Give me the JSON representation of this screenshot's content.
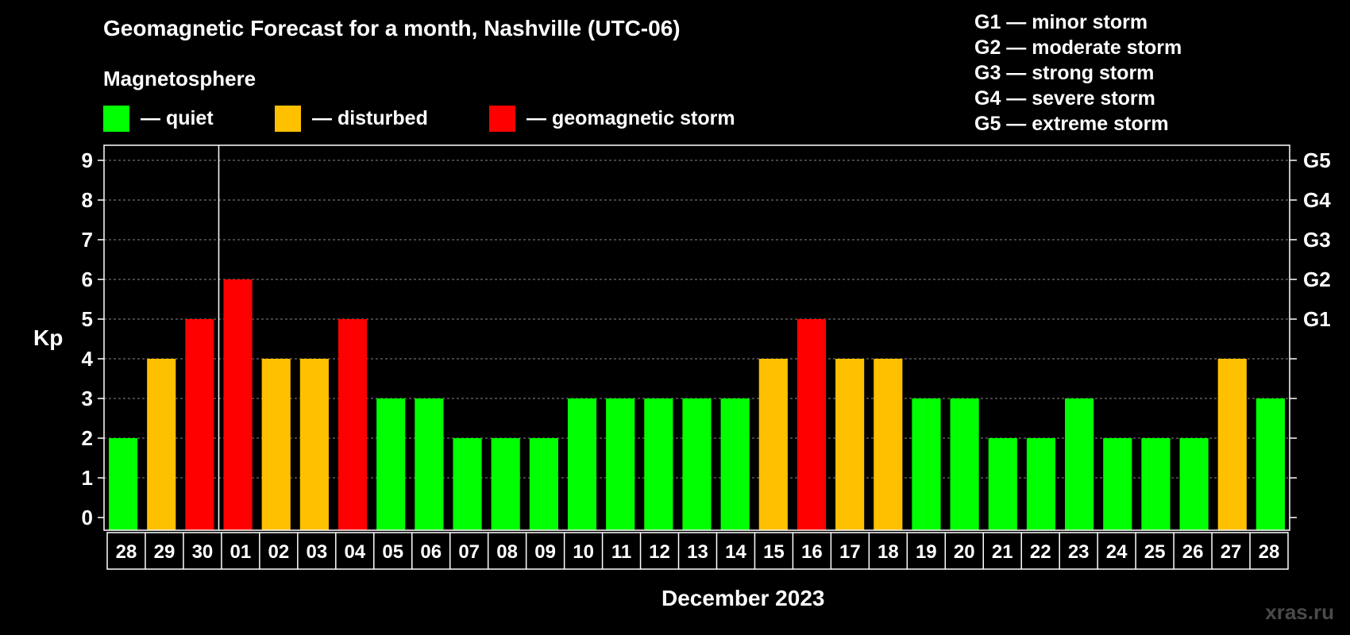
{
  "title": "Geomagnetic Forecast for a month, Nashville (UTC-06)",
  "legend": {
    "heading": "Magnetosphere",
    "items": [
      {
        "label": "— quiet",
        "color": "#00ff00"
      },
      {
        "label": "— disturbed",
        "color": "#ffc000"
      },
      {
        "label": "— geomagnetic storm",
        "color": "#ff0000"
      }
    ]
  },
  "g_scale": [
    "G1 — minor storm",
    "G2 — moderate storm",
    "G3 — strong storm",
    "G4 — severe storm",
    "G5 — extreme storm"
  ],
  "watermark": "xras.ru",
  "chart_data": {
    "type": "bar",
    "title": "Geomagnetic Forecast for a month, Nashville (UTC-06)",
    "xlabel": "December 2023",
    "ylabel": "Kp",
    "ylim": [
      0,
      9
    ],
    "yticks": [
      "0",
      "1",
      "2",
      "3",
      "4",
      "5",
      "6",
      "7",
      "8",
      "9"
    ],
    "right_axis_labels": [
      {
        "kp": 5,
        "label": "G1"
      },
      {
        "kp": 6,
        "label": "G2"
      },
      {
        "kp": 7,
        "label": "G3"
      },
      {
        "kp": 8,
        "label": "G4"
      },
      {
        "kp": 9,
        "label": "G5"
      }
    ],
    "categories": [
      "28",
      "29",
      "30",
      "01",
      "02",
      "03",
      "04",
      "05",
      "06",
      "07",
      "08",
      "09",
      "10",
      "11",
      "12",
      "13",
      "14",
      "15",
      "16",
      "17",
      "18",
      "19",
      "20",
      "21",
      "22",
      "23",
      "24",
      "25",
      "26",
      "27",
      "28"
    ],
    "values": [
      2,
      4,
      5,
      6,
      4,
      4,
      5,
      3,
      3,
      2,
      2,
      2,
      3,
      3,
      3,
      3,
      3,
      4,
      5,
      4,
      4,
      3,
      3,
      2,
      2,
      3,
      2,
      2,
      2,
      4,
      3
    ],
    "month_divider_after_index": 2,
    "colors": {
      "quiet": "#00ff00",
      "disturbed": "#ffc000",
      "storm": "#ff0000"
    },
    "grid": true
  }
}
